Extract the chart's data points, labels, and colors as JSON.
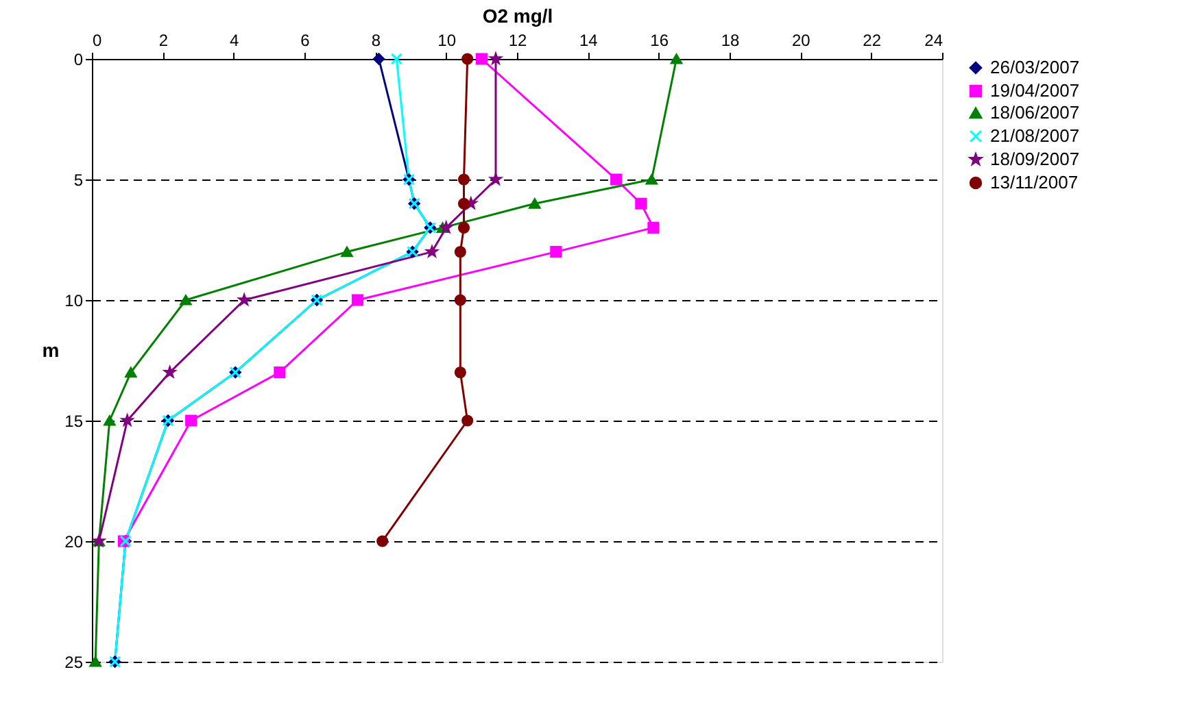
{
  "chart_data": {
    "type": "line",
    "xlabel": "O2 mg/l",
    "ylabel": "m",
    "xlim": [
      0,
      24
    ],
    "xticks": [
      0,
      2,
      4,
      6,
      8,
      10,
      12,
      14,
      16,
      18,
      20,
      22,
      24
    ],
    "ylim": [
      25,
      0
    ],
    "yticks": [
      0,
      5,
      10,
      15,
      20,
      25
    ],
    "grid": "y",
    "legend": "right",
    "line_style": "solid",
    "series": [
      {
        "name": "26/03/2007",
        "color": "#000080",
        "marker": "diamond",
        "x": [
          8.1,
          8.95,
          9.1,
          9.55,
          9.05,
          6.35,
          4.05,
          2.15,
          0.95,
          0.65
        ],
        "values": [
          0,
          5,
          6,
          7,
          8,
          10,
          13,
          15,
          20,
          25
        ]
      },
      {
        "name": "19/04/2007",
        "color": "#ff00ff",
        "marker": "square",
        "x": [
          11.0,
          14.8,
          15.5,
          15.85,
          13.1,
          7.5,
          5.3,
          2.8,
          0.9
        ],
        "values": [
          0,
          5,
          6,
          7,
          8,
          10,
          13,
          15,
          20
        ]
      },
      {
        "name": "18/06/2007",
        "color": "#008000",
        "marker": "triangle",
        "x": [
          16.5,
          15.8,
          12.5,
          9.9,
          7.2,
          2.65,
          1.1,
          0.5,
          0.2,
          0.1
        ],
        "values": [
          0,
          5,
          6,
          7,
          8,
          10,
          13,
          15,
          20,
          25
        ]
      },
      {
        "name": "21/08/2007",
        "color": "#00ffff",
        "marker": "cross",
        "x": [
          8.6,
          8.95,
          9.1,
          9.55,
          9.05,
          6.35,
          4.05,
          2.15,
          0.95,
          0.65
        ],
        "values": [
          0,
          5,
          6,
          7,
          8,
          10,
          13,
          15,
          20,
          25
        ]
      },
      {
        "name": "18/09/2007",
        "color": "#800080",
        "marker": "star",
        "x": [
          11.4,
          11.4,
          10.7,
          10.0,
          9.6,
          4.3,
          2.2,
          1.0,
          0.2
        ],
        "values": [
          0,
          5,
          6,
          7,
          8,
          10,
          13,
          15,
          20
        ]
      },
      {
        "name": "13/11/2007",
        "color": "#800000",
        "marker": "circle",
        "x": [
          10.6,
          10.5,
          10.5,
          10.5,
          10.4,
          10.4,
          10.4,
          10.6,
          8.2
        ],
        "values": [
          0,
          5,
          6,
          7,
          8,
          10,
          13,
          15,
          20
        ]
      }
    ]
  }
}
